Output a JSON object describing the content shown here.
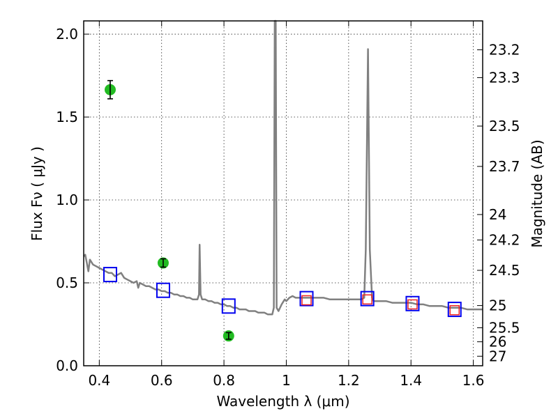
{
  "chart_data": {
    "type": "scatter",
    "title": "",
    "xlabel": "Wavelength  λ (μm)",
    "ylabel": "Flux  Fν  ( μJy )",
    "ylabel_right": "Magnitude (AB)",
    "xlim": [
      0.35,
      1.63
    ],
    "ylim": [
      0.0,
      2.08
    ],
    "grid": true,
    "x_ticks": [
      {
        "value": 0.4,
        "label": "0.4"
      },
      {
        "value": 0.6,
        "label": "0.6"
      },
      {
        "value": 0.8,
        "label": "0.8"
      },
      {
        "value": 1.0,
        "label": "1"
      },
      {
        "value": 1.2,
        "label": "1.2"
      },
      {
        "value": 1.4,
        "label": "1.4"
      },
      {
        "value": 1.6,
        "label": "1.6"
      }
    ],
    "y_ticks": [
      {
        "value": 0.0,
        "label": "0.0"
      },
      {
        "value": 0.5,
        "label": "0.5"
      },
      {
        "value": 1.0,
        "label": "1.0"
      },
      {
        "value": 1.5,
        "label": "1.5"
      },
      {
        "value": 2.0,
        "label": "2.0"
      }
    ],
    "mag_ticks": [
      {
        "value": 23.2,
        "label": "23.2"
      },
      {
        "value": 23.3,
        "label": "23.3"
      },
      {
        "value": 23.5,
        "label": "23.5"
      },
      {
        "value": 23.7,
        "label": "23.7"
      },
      {
        "value": 24.0,
        "label": "24"
      },
      {
        "value": 24.2,
        "label": "24.2"
      },
      {
        "value": 24.5,
        "label": "24.5"
      },
      {
        "value": 25.0,
        "label": "25"
      },
      {
        "value": 25.5,
        "label": "25.5"
      },
      {
        "value": 26.0,
        "label": "26"
      },
      {
        "value": 27.0,
        "label": "27"
      }
    ],
    "series": [
      {
        "kind": "line",
        "color": "#808080",
        "points": [
          [
            0.35,
            0.66
          ],
          [
            0.355,
            0.67
          ],
          [
            0.36,
            0.62
          ],
          [
            0.365,
            0.57
          ],
          [
            0.37,
            0.64
          ],
          [
            0.38,
            0.61
          ],
          [
            0.39,
            0.6
          ],
          [
            0.4,
            0.59
          ],
          [
            0.41,
            0.58
          ],
          [
            0.42,
            0.57
          ],
          [
            0.43,
            0.56
          ],
          [
            0.44,
            0.56
          ],
          [
            0.45,
            0.54
          ],
          [
            0.46,
            0.55
          ],
          [
            0.47,
            0.56
          ],
          [
            0.48,
            0.53
          ],
          [
            0.49,
            0.52
          ],
          [
            0.5,
            0.51
          ],
          [
            0.51,
            0.5
          ],
          [
            0.52,
            0.51
          ],
          [
            0.525,
            0.47
          ],
          [
            0.53,
            0.5
          ],
          [
            0.54,
            0.49
          ],
          [
            0.55,
            0.48
          ],
          [
            0.56,
            0.48
          ],
          [
            0.57,
            0.47
          ],
          [
            0.58,
            0.46
          ],
          [
            0.59,
            0.46
          ],
          [
            0.6,
            0.45
          ],
          [
            0.61,
            0.45
          ],
          [
            0.62,
            0.44
          ],
          [
            0.63,
            0.44
          ],
          [
            0.64,
            0.43
          ],
          [
            0.65,
            0.43
          ],
          [
            0.66,
            0.42
          ],
          [
            0.67,
            0.42
          ],
          [
            0.68,
            0.41
          ],
          [
            0.69,
            0.41
          ],
          [
            0.7,
            0.4
          ],
          [
            0.71,
            0.4
          ],
          [
            0.715,
            0.4
          ],
          [
            0.72,
            0.43
          ],
          [
            0.722,
            0.73
          ],
          [
            0.725,
            0.43
          ],
          [
            0.73,
            0.4
          ],
          [
            0.74,
            0.4
          ],
          [
            0.75,
            0.39
          ],
          [
            0.76,
            0.39
          ],
          [
            0.77,
            0.38
          ],
          [
            0.78,
            0.38
          ],
          [
            0.79,
            0.37
          ],
          [
            0.8,
            0.37
          ],
          [
            0.81,
            0.36
          ],
          [
            0.82,
            0.36
          ],
          [
            0.83,
            0.35
          ],
          [
            0.84,
            0.35
          ],
          [
            0.85,
            0.34
          ],
          [
            0.86,
            0.34
          ],
          [
            0.87,
            0.34
          ],
          [
            0.88,
            0.33
          ],
          [
            0.89,
            0.33
          ],
          [
            0.9,
            0.33
          ],
          [
            0.91,
            0.32
          ],
          [
            0.92,
            0.32
          ],
          [
            0.93,
            0.32
          ],
          [
            0.94,
            0.31
          ],
          [
            0.95,
            0.31
          ],
          [
            0.955,
            0.31
          ],
          [
            0.96,
            0.35
          ],
          [
            0.963,
            2.08
          ],
          [
            0.966,
            2.08
          ],
          [
            0.969,
            0.35
          ],
          [
            0.975,
            0.33
          ],
          [
            0.985,
            0.37
          ],
          [
            0.995,
            0.4
          ],
          [
            1.0,
            0.39
          ],
          [
            1.01,
            0.41
          ],
          [
            1.02,
            0.42
          ],
          [
            1.03,
            0.41
          ],
          [
            1.04,
            0.41
          ],
          [
            1.05,
            0.41
          ],
          [
            1.06,
            0.41
          ],
          [
            1.08,
            0.41
          ],
          [
            1.1,
            0.41
          ],
          [
            1.12,
            0.41
          ],
          [
            1.14,
            0.4
          ],
          [
            1.16,
            0.4
          ],
          [
            1.18,
            0.4
          ],
          [
            1.2,
            0.4
          ],
          [
            1.22,
            0.4
          ],
          [
            1.24,
            0.4
          ],
          [
            1.25,
            0.41
          ],
          [
            1.255,
            0.7
          ],
          [
            1.262,
            1.91
          ],
          [
            1.268,
            0.7
          ],
          [
            1.275,
            0.41
          ],
          [
            1.28,
            0.39
          ],
          [
            1.3,
            0.39
          ],
          [
            1.32,
            0.39
          ],
          [
            1.34,
            0.38
          ],
          [
            1.36,
            0.38
          ],
          [
            1.38,
            0.38
          ],
          [
            1.4,
            0.38
          ],
          [
            1.42,
            0.37
          ],
          [
            1.44,
            0.37
          ],
          [
            1.46,
            0.36
          ],
          [
            1.48,
            0.36
          ],
          [
            1.5,
            0.36
          ],
          [
            1.52,
            0.35
          ],
          [
            1.54,
            0.35
          ],
          [
            1.56,
            0.35
          ],
          [
            1.58,
            0.34
          ],
          [
            1.6,
            0.34
          ],
          [
            1.63,
            0.34
          ]
        ]
      },
      {
        "kind": "observed",
        "color": "#22bb22",
        "points": [
          {
            "x": 0.435,
            "y": 1.665,
            "err": 0.055
          },
          {
            "x": 0.605,
            "y": 0.62,
            "err": 0.025
          },
          {
            "x": 0.815,
            "y": 0.18,
            "err": 0.02
          }
        ]
      },
      {
        "kind": "model-square",
        "color": "#0000ee",
        "points": [
          {
            "x": 0.435,
            "y": 0.55
          },
          {
            "x": 0.605,
            "y": 0.455
          },
          {
            "x": 0.815,
            "y": 0.36
          },
          {
            "x": 1.065,
            "y": 0.405
          },
          {
            "x": 1.26,
            "y": 0.405
          },
          {
            "x": 1.405,
            "y": 0.375
          },
          {
            "x": 1.54,
            "y": 0.34
          }
        ]
      },
      {
        "kind": "measured-square",
        "color": "#ee2222",
        "points": [
          {
            "x": 1.065,
            "y": 0.395
          },
          {
            "x": 1.26,
            "y": 0.4
          },
          {
            "x": 1.405,
            "y": 0.37
          },
          {
            "x": 1.54,
            "y": 0.335
          }
        ]
      }
    ]
  }
}
